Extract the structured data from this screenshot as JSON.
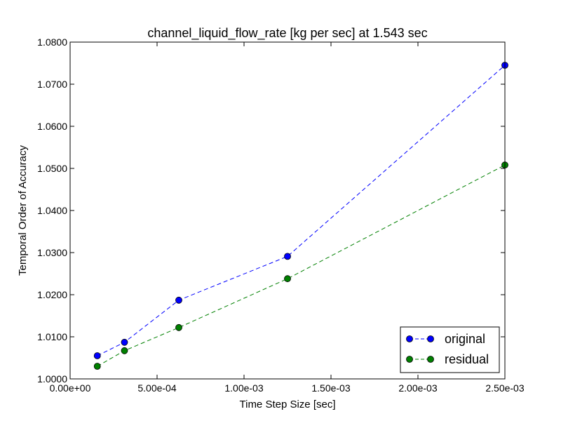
{
  "chart_data": {
    "type": "line",
    "title": "channel_liquid_flow_rate [kg per sec] at 1.543 sec",
    "xlabel": "Time Step Size [sec]",
    "ylabel": "Temporal Order of Accuracy",
    "xlim": [
      0,
      0.0025
    ],
    "ylim": [
      1.0,
      1.08
    ],
    "x_ticks": [
      0,
      0.0005,
      0.001,
      0.0015,
      0.002,
      0.0025
    ],
    "x_tick_labels": [
      "0.00e+00",
      "5.00e-04",
      "1.00e-03",
      "1.50e-03",
      "2.00e-03",
      "2.50e-03"
    ],
    "y_ticks": [
      1.0,
      1.01,
      1.02,
      1.03,
      1.04,
      1.05,
      1.06,
      1.07,
      1.08
    ],
    "y_tick_labels": [
      "1.0000",
      "1.0100",
      "1.0200",
      "1.0300",
      "1.0400",
      "1.0500",
      "1.0600",
      "1.0700",
      "1.0800"
    ],
    "grid": false,
    "legend_position": "bottom-right",
    "series": [
      {
        "name": "original",
        "color": "#0000ff",
        "line_style": "dashed",
        "marker": "circle",
        "x": [
          0.00015625,
          0.0003125,
          0.000625,
          0.00125,
          0.0025
        ],
        "y": [
          1.0055,
          1.0087,
          1.0187,
          1.0291,
          1.0745
        ]
      },
      {
        "name": "residual",
        "color": "#008000",
        "line_style": "dashed",
        "marker": "circle",
        "x": [
          0.00015625,
          0.0003125,
          0.000625,
          0.00125,
          0.0025
        ],
        "y": [
          1.003,
          1.0067,
          1.0122,
          1.0238,
          1.0508
        ]
      }
    ]
  }
}
